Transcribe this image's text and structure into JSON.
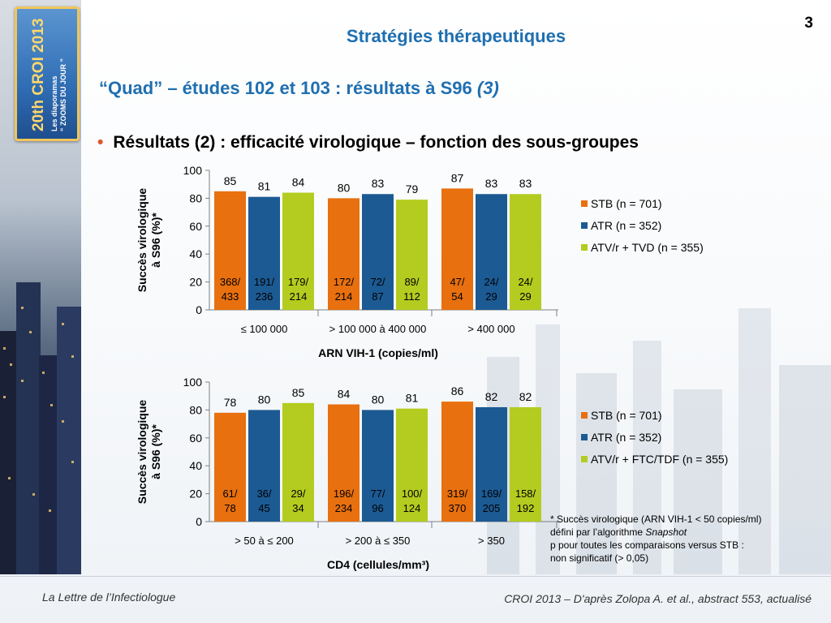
{
  "slide": {
    "page_number": "3",
    "title": "Stratégies thérapeutiques",
    "subtitle_main": "“Quad” – études 102 et 103 : résultats à S96 ",
    "subtitle_italic": "(3)",
    "bullet": "Résultats (2) : efficacité virologique – fonction des sous-groupes",
    "footnote": {
      "line1": "* Succès virologique (ARN VIH-1 < 50 copies/ml)",
      "line2_prefix": "défini par l’algorithme ",
      "line2_italic": "Snapshot",
      "line3": "p pour toutes les comparaisons versus STB :",
      "line4": "non significatif (> 0,05)"
    },
    "footer_left": "La Lettre de l’Infectiologue",
    "footer_right": "CROI 2013 – D'après Zolopa A. et al., abstract 553, actualisé",
    "banner": {
      "badge_text": "20th CROI 2013",
      "badge_sub_line1": "Les diaporamas",
      "badge_sub_line2": "“ ZOOMS DU JOUR ”"
    }
  },
  "colors": {
    "title_blue": "#1f6fb0",
    "stb": "#e8700f",
    "atr": "#1c5a93",
    "atv": "#b3cc1f",
    "axis": "#7f7f7f"
  },
  "chart_data": [
    {
      "type": "bar",
      "ylabel_line1": "Succès virologique",
      "ylabel_line2": "à S96 (%)*",
      "xlabel": "ARN VIH-1 (copies/ml)",
      "ylim": [
        0,
        100
      ],
      "yticks": [
        0,
        20,
        40,
        60,
        80,
        100
      ],
      "categories": [
        "≤ 100 000",
        "> 100 000 à 400 000",
        "> 400 000"
      ],
      "series": [
        {
          "name": "STB (n = 701)",
          "color": "#e8700f",
          "values": [
            85,
            80,
            87
          ],
          "counts": [
            [
              "368/",
              "433"
            ],
            [
              "172/",
              "214"
            ],
            [
              "47/",
              "54"
            ]
          ]
        },
        {
          "name": "ATR (n = 352)",
          "color": "#1c5a93",
          "values": [
            81,
            83,
            83
          ],
          "counts": [
            [
              "191/",
              "236"
            ],
            [
              "72/",
              "87"
            ],
            [
              "24/",
              "29"
            ]
          ]
        },
        {
          "name": "ATV/r + TVD (n = 355)",
          "color": "#b3cc1f",
          "values": [
            84,
            79,
            83
          ],
          "counts": [
            [
              "179/",
              "214"
            ],
            [
              "89/",
              "112"
            ],
            [
              "24/",
              "29"
            ]
          ]
        }
      ],
      "legend_position": "right"
    },
    {
      "type": "bar",
      "ylabel_line1": "Succès virologique",
      "ylabel_line2": "à S96 (%)*",
      "xlabel": "CD4 (cellules/mm³)",
      "ylim": [
        0,
        100
      ],
      "yticks": [
        0,
        20,
        40,
        60,
        80,
        100
      ],
      "categories": [
        "> 50 à ≤ 200",
        "> 200 à ≤ 350",
        "> 350"
      ],
      "series": [
        {
          "name": "STB (n = 701)",
          "color": "#e8700f",
          "values": [
            78,
            84,
            86
          ],
          "counts": [
            [
              "61/",
              "78"
            ],
            [
              "196/",
              "234"
            ],
            [
              "319/",
              "370"
            ]
          ]
        },
        {
          "name": "ATR (n = 352)",
          "color": "#1c5a93",
          "values": [
            80,
            80,
            82
          ],
          "counts": [
            [
              "36/",
              "45"
            ],
            [
              "77/",
              "96"
            ],
            [
              "169/",
              "205"
            ]
          ]
        },
        {
          "name": "ATV/r + FTC/TDF (n = 355)",
          "color": "#b3cc1f",
          "values": [
            85,
            81,
            82
          ],
          "counts": [
            [
              "29/",
              "34"
            ],
            [
              "100/",
              "124"
            ],
            [
              "158/",
              "192"
            ]
          ]
        }
      ],
      "legend_position": "right"
    }
  ]
}
